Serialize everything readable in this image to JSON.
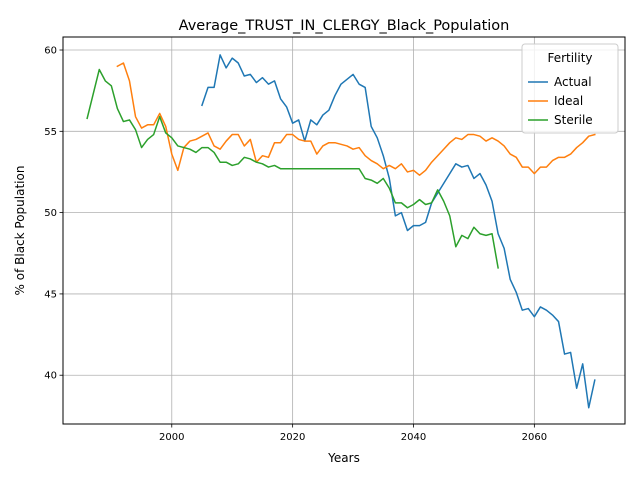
{
  "chart_data": {
    "type": "line",
    "title": "Average_TRUST_IN_CLERGY_Black_Population",
    "xlabel": "Years",
    "ylabel": "% of Black Population",
    "xlim": [
      1982,
      2075
    ],
    "ylim": [
      37,
      60.8
    ],
    "xticks": [
      2000,
      2020,
      2040,
      2060
    ],
    "yticks": [
      40,
      45,
      50,
      55,
      60
    ],
    "grid": true,
    "legend": {
      "title": "Fertility",
      "placement": "top-right"
    },
    "series": [
      {
        "name": "Actual",
        "color": "#1f77b4",
        "x": [
          2005,
          2006,
          2007,
          2008,
          2009,
          2010,
          2011,
          2012,
          2013,
          2014,
          2015,
          2016,
          2017,
          2018,
          2019,
          2020,
          2021,
          2022,
          2023,
          2024,
          2025,
          2026,
          2027,
          2028,
          2029,
          2030,
          2031,
          2032,
          2033,
          2034,
          2035,
          2036,
          2037,
          2038,
          2039,
          2040,
          2041,
          2042,
          2043,
          2044,
          2045,
          2046,
          2047,
          2048,
          2049,
          2050,
          2051,
          2052,
          2053,
          2054,
          2055,
          2056,
          2057,
          2058,
          2059,
          2060,
          2061,
          2062,
          2063,
          2064,
          2065,
          2066,
          2067,
          2068,
          2069,
          2070
        ],
        "y": [
          56.6,
          57.7,
          57.7,
          59.7,
          58.9,
          59.5,
          59.2,
          58.4,
          58.5,
          58.0,
          58.3,
          57.9,
          58.1,
          57.0,
          56.5,
          55.5,
          55.7,
          54.4,
          55.7,
          55.4,
          56.0,
          56.3,
          57.2,
          57.9,
          58.2,
          58.5,
          57.9,
          57.7,
          55.3,
          54.6,
          53.5,
          52.1,
          49.8,
          50.0,
          48.9,
          49.2,
          49.2,
          49.4,
          50.6,
          51.2,
          51.8,
          52.4,
          53.0,
          52.8,
          52.9,
          52.1,
          52.4,
          51.7,
          50.7,
          48.7,
          47.8,
          45.9,
          45.1,
          44.0,
          44.1,
          43.6,
          44.2,
          44.0,
          43.7,
          43.3,
          41.3,
          41.4,
          39.2,
          40.7,
          38.0,
          39.7
        ]
      },
      {
        "name": "Ideal",
        "color": "#ff7f0e",
        "x": [
          1991,
          1992,
          1993,
          1994,
          1995,
          1996,
          1997,
          1998,
          1999,
          2000,
          2001,
          2002,
          2003,
          2004,
          2005,
          2006,
          2007,
          2008,
          2009,
          2010,
          2011,
          2012,
          2013,
          2014,
          2015,
          2016,
          2017,
          2018,
          2019,
          2020,
          2021,
          2022,
          2023,
          2024,
          2025,
          2026,
          2027,
          2028,
          2029,
          2030,
          2031,
          2032,
          2033,
          2034,
          2035,
          2036,
          2037,
          2038,
          2039,
          2040,
          2041,
          2042,
          2043,
          2044,
          2045,
          2046,
          2047,
          2048,
          2049,
          2050,
          2051,
          2052,
          2053,
          2054,
          2055,
          2056,
          2057,
          2058,
          2059,
          2060,
          2061,
          2062,
          2063,
          2064,
          2065,
          2066,
          2067,
          2068,
          2069,
          2070
        ],
        "y": [
          59.0,
          59.2,
          58.1,
          55.9,
          55.2,
          55.4,
          55.4,
          56.1,
          55.3,
          53.6,
          52.6,
          54.0,
          54.4,
          54.5,
          54.7,
          54.9,
          54.1,
          53.9,
          54.4,
          54.8,
          54.8,
          54.1,
          54.5,
          53.1,
          53.5,
          53.4,
          54.3,
          54.3,
          54.8,
          54.8,
          54.5,
          54.4,
          54.4,
          53.6,
          54.1,
          54.3,
          54.3,
          54.2,
          54.1,
          53.9,
          54.0,
          53.5,
          53.2,
          53.0,
          52.7,
          52.9,
          52.7,
          53.0,
          52.5,
          52.6,
          52.3,
          52.6,
          53.1,
          53.5,
          53.9,
          54.3,
          54.6,
          54.5,
          54.8,
          54.8,
          54.7,
          54.4,
          54.6,
          54.4,
          54.1,
          53.6,
          53.4,
          52.8,
          52.8,
          52.4,
          52.8,
          52.8,
          53.2,
          53.4,
          53.4,
          53.6,
          54.0,
          54.3,
          54.7,
          54.8
        ]
      },
      {
        "name": "Sterile",
        "color": "#2ca02c",
        "x": [
          1986,
          1987,
          1988,
          1989,
          1990,
          1991,
          1992,
          1993,
          1994,
          1995,
          1996,
          1997,
          1998,
          1999,
          2000,
          2001,
          2002,
          2003,
          2004,
          2005,
          2006,
          2007,
          2008,
          2009,
          2010,
          2011,
          2012,
          2013,
          2014,
          2015,
          2016,
          2017,
          2018,
          2019,
          2020,
          2021,
          2022,
          2023,
          2024,
          2025,
          2026,
          2027,
          2028,
          2029,
          2030,
          2031,
          2032,
          2033,
          2034,
          2035,
          2036,
          2037,
          2038,
          2039,
          2040,
          2041,
          2042,
          2043,
          2044,
          2045,
          2046,
          2047,
          2048,
          2049,
          2050,
          2051,
          2052,
          2053,
          2054
        ],
        "y": [
          55.8,
          57.3,
          58.8,
          58.1,
          57.8,
          56.4,
          55.6,
          55.7,
          55.1,
          54.0,
          54.5,
          54.8,
          55.9,
          54.9,
          54.6,
          54.1,
          54.0,
          53.9,
          53.7,
          54.0,
          54.0,
          53.7,
          53.1,
          53.1,
          52.9,
          53.0,
          53.4,
          53.3,
          53.1,
          53.0,
          52.8,
          52.9,
          52.7,
          52.7,
          52.7,
          52.7,
          52.7,
          52.7,
          52.7,
          52.7,
          52.7,
          52.7,
          52.7,
          52.7,
          52.7,
          52.7,
          52.1,
          52.0,
          51.8,
          52.1,
          51.5,
          50.6,
          50.6,
          50.3,
          50.5,
          50.8,
          50.5,
          50.6,
          51.4,
          50.7,
          49.8,
          47.9,
          48.6,
          48.4,
          49.1,
          48.7,
          48.6,
          48.7,
          46.6
        ]
      }
    ]
  }
}
